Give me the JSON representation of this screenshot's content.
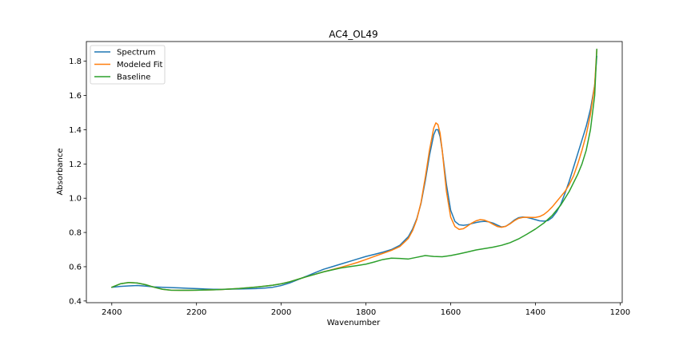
{
  "chart_data": {
    "type": "line",
    "title": "AC4_OL49",
    "xlabel": "Wavenumber",
    "ylabel": "Absorbance",
    "xlim": [
      2460,
      1195
    ],
    "ylim": [
      0.39,
      1.915
    ],
    "x_ticks": [
      2400,
      2200,
      2000,
      1800,
      1600,
      1400,
      1200
    ],
    "y_ticks": [
      0.4,
      0.6,
      0.8,
      1.0,
      1.2,
      1.4,
      1.6,
      1.8
    ],
    "x_reversed": true,
    "grid": false,
    "legend_position": "upper-left",
    "series": [
      {
        "name": "Spectrum",
        "color": "#1f77b4",
        "x": [
          2400,
          2380,
          2360,
          2340,
          2320,
          2300,
          2280,
          2260,
          2240,
          2220,
          2200,
          2180,
          2160,
          2140,
          2120,
          2100,
          2080,
          2060,
          2040,
          2020,
          2000,
          1980,
          1960,
          1940,
          1920,
          1900,
          1880,
          1860,
          1840,
          1820,
          1800,
          1780,
          1760,
          1740,
          1720,
          1700,
          1690,
          1680,
          1670,
          1660,
          1650,
          1640,
          1635,
          1630,
          1625,
          1620,
          1610,
          1600,
          1590,
          1580,
          1570,
          1560,
          1550,
          1540,
          1530,
          1520,
          1510,
          1500,
          1490,
          1480,
          1470,
          1460,
          1450,
          1440,
          1430,
          1420,
          1410,
          1400,
          1390,
          1380,
          1370,
          1360,
          1350,
          1340,
          1330,
          1320,
          1310,
          1300,
          1290,
          1280,
          1270,
          1260,
          1255
        ],
        "y": [
          0.48,
          0.485,
          0.488,
          0.49,
          0.487,
          0.482,
          0.48,
          0.478,
          0.476,
          0.474,
          0.472,
          0.47,
          0.468,
          0.468,
          0.469,
          0.47,
          0.471,
          0.472,
          0.475,
          0.48,
          0.49,
          0.505,
          0.525,
          0.545,
          0.565,
          0.585,
          0.6,
          0.615,
          0.63,
          0.645,
          0.66,
          0.672,
          0.685,
          0.7,
          0.725,
          0.775,
          0.82,
          0.88,
          0.97,
          1.1,
          1.25,
          1.37,
          1.4,
          1.4,
          1.36,
          1.28,
          1.08,
          0.93,
          0.865,
          0.845,
          0.842,
          0.845,
          0.852,
          0.858,
          0.863,
          0.865,
          0.862,
          0.855,
          0.843,
          0.832,
          0.836,
          0.852,
          0.872,
          0.886,
          0.89,
          0.888,
          0.882,
          0.875,
          0.868,
          0.866,
          0.87,
          0.888,
          0.92,
          0.965,
          1.03,
          1.1,
          1.18,
          1.26,
          1.34,
          1.42,
          1.52,
          1.66,
          1.83
        ]
      },
      {
        "name": "Modeled Fit",
        "color": "#ff7f0e",
        "x": [
          2400,
          2380,
          2360,
          2340,
          2320,
          2300,
          2280,
          2260,
          2240,
          2220,
          2200,
          2180,
          2160,
          2140,
          2120,
          2100,
          2080,
          2060,
          2040,
          2020,
          2000,
          1980,
          1960,
          1940,
          1920,
          1900,
          1880,
          1860,
          1840,
          1820,
          1800,
          1780,
          1760,
          1740,
          1720,
          1700,
          1690,
          1680,
          1670,
          1660,
          1650,
          1640,
          1635,
          1630,
          1625,
          1620,
          1610,
          1600,
          1590,
          1580,
          1570,
          1560,
          1550,
          1540,
          1530,
          1520,
          1510,
          1500,
          1490,
          1480,
          1470,
          1460,
          1450,
          1440,
          1430,
          1420,
          1410,
          1400,
          1390,
          1380,
          1370,
          1360,
          1350,
          1340,
          1330,
          1320,
          1310,
          1300,
          1290,
          1280,
          1270,
          1260,
          1255
        ],
        "y": [
          0.48,
          0.5,
          0.508,
          0.505,
          0.495,
          0.48,
          0.468,
          0.463,
          0.462,
          0.462,
          0.463,
          0.464,
          0.465,
          0.467,
          0.47,
          0.473,
          0.477,
          0.481,
          0.486,
          0.492,
          0.5,
          0.512,
          0.527,
          0.542,
          0.556,
          0.57,
          0.583,
          0.596,
          0.61,
          0.625,
          0.642,
          0.66,
          0.678,
          0.695,
          0.718,
          0.765,
          0.81,
          0.875,
          0.975,
          1.12,
          1.28,
          1.41,
          1.44,
          1.43,
          1.38,
          1.28,
          1.04,
          0.89,
          0.835,
          0.818,
          0.822,
          0.838,
          0.855,
          0.868,
          0.875,
          0.872,
          0.862,
          0.848,
          0.835,
          0.83,
          0.836,
          0.85,
          0.868,
          0.882,
          0.888,
          0.889,
          0.888,
          0.888,
          0.893,
          0.905,
          0.925,
          0.95,
          0.98,
          1.01,
          1.04,
          1.08,
          1.13,
          1.2,
          1.28,
          1.37,
          1.49,
          1.66,
          1.87
        ]
      },
      {
        "name": "Baseline",
        "color": "#2ca02c",
        "x": [
          2400,
          2380,
          2360,
          2340,
          2320,
          2300,
          2280,
          2260,
          2240,
          2220,
          2200,
          2180,
          2160,
          2140,
          2120,
          2100,
          2080,
          2060,
          2040,
          2020,
          2000,
          1980,
          1960,
          1940,
          1920,
          1900,
          1880,
          1860,
          1840,
          1820,
          1800,
          1780,
          1760,
          1740,
          1720,
          1700,
          1680,
          1660,
          1640,
          1620,
          1600,
          1580,
          1560,
          1540,
          1520,
          1500,
          1480,
          1460,
          1440,
          1420,
          1400,
          1380,
          1360,
          1340,
          1320,
          1300,
          1290,
          1280,
          1270,
          1260,
          1255
        ],
        "y": [
          0.48,
          0.5,
          0.508,
          0.505,
          0.495,
          0.48,
          0.468,
          0.463,
          0.462,
          0.462,
          0.463,
          0.464,
          0.465,
          0.467,
          0.47,
          0.473,
          0.477,
          0.481,
          0.486,
          0.492,
          0.5,
          0.512,
          0.527,
          0.542,
          0.556,
          0.57,
          0.581,
          0.592,
          0.6,
          0.607,
          0.615,
          0.628,
          0.642,
          0.65,
          0.648,
          0.645,
          0.655,
          0.665,
          0.66,
          0.658,
          0.665,
          0.675,
          0.686,
          0.698,
          0.706,
          0.714,
          0.725,
          0.74,
          0.762,
          0.79,
          0.82,
          0.855,
          0.9,
          0.96,
          1.04,
          1.14,
          1.2,
          1.28,
          1.4,
          1.6,
          1.87
        ]
      }
    ]
  }
}
